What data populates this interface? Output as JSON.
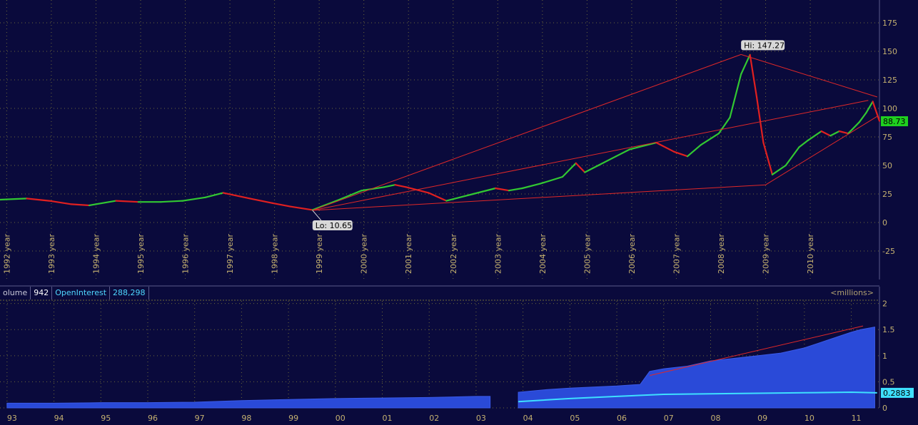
{
  "colors": {
    "background": "#0a0a3c",
    "grid": "#6e6a3a",
    "up": "#32c832",
    "down": "#e02020",
    "trendline": "#e02828",
    "volume": "#2a4ad8",
    "open_interest": "#3ee0ff",
    "axis_text": "#c4b070"
  },
  "chart_data": [
    {
      "type": "line",
      "name": "price",
      "x_tick_labels": [
        "1992 year",
        "1993 year",
        "1994 year",
        "1995 year",
        "1996 year",
        "1997 year",
        "1998 year",
        "1999 year",
        "2000 year",
        "2001 year",
        "2002 year",
        "2003 year",
        "2004 year",
        "2005 year",
        "2006 year",
        "2007 year",
        "2008 year",
        "2009 year",
        "2010 year"
      ],
      "y_ticks": [
        -25,
        0,
        25,
        50,
        75,
        100,
        125,
        150,
        175
      ],
      "ylim": [
        -50,
        195
      ],
      "xlim": [
        1991.9,
        2011.6
      ],
      "grid": true,
      "x": [
        1991.9,
        1992.5,
        1993.0,
        1993.5,
        1993.9,
        1994.5,
        1995.0,
        1995.5,
        1996.0,
        1996.5,
        1996.9,
        1997.5,
        1998.0,
        1998.4,
        1998.9,
        1999.5,
        2000.0,
        2000.5,
        2000.75,
        2001.0,
        2001.5,
        2001.9,
        2002.5,
        2003.0,
        2003.3,
        2003.6,
        2004.0,
        2004.5,
        2004.8,
        2005.0,
        2005.3,
        2005.7,
        2006.0,
        2006.6,
        2007.0,
        2007.3,
        2007.6,
        2008.0,
        2008.25,
        2008.5,
        2008.7,
        2008.85,
        2009.0,
        2009.2,
        2009.5,
        2009.8,
        2010.0,
        2010.3,
        2010.5,
        2010.7,
        2010.9,
        2011.0,
        2011.15,
        2011.3,
        2011.45,
        2011.6
      ],
      "values": [
        20,
        21,
        19,
        16,
        15,
        19,
        18,
        18,
        19,
        22,
        26,
        21,
        17,
        14,
        11,
        20,
        28,
        31,
        33,
        31,
        26,
        19,
        25,
        30,
        28,
        30,
        34,
        40,
        52,
        44,
        50,
        58,
        64,
        70,
        62,
        58,
        68,
        78,
        92,
        130,
        147,
        110,
        70,
        42,
        50,
        66,
        72,
        80,
        76,
        80,
        78,
        82,
        88,
        96,
        106,
        89
      ],
      "annotations": [
        {
          "label": "Hi: 147.27",
          "x": 2008.5,
          "y": 147.27
        },
        {
          "label": "Lo: 10.65",
          "x": 1998.9,
          "y": 10.65
        }
      ],
      "last_value_label": "88.73",
      "last_value": 88.73,
      "trendlines": [
        [
          [
            1998.9,
            10.65
          ],
          [
            2008.5,
            147.27
          ]
        ],
        [
          [
            2008.5,
            147.27
          ],
          [
            2011.55,
            110
          ]
        ],
        [
          [
            1998.9,
            10.65
          ],
          [
            2009.05,
            33
          ]
        ],
        [
          [
            1998.9,
            10.65
          ],
          [
            2011.35,
            107
          ]
        ],
        [
          [
            2009.05,
            33
          ],
          [
            2011.55,
            93
          ]
        ]
      ]
    },
    {
      "type": "area",
      "name": "volume",
      "header": {
        "volume_label": "olume",
        "volume_value": "942",
        "oi_label": "OpenInterest",
        "oi_value": "288,298"
      },
      "units_label": "<millions>",
      "x_tick_labels": [
        "93",
        "94",
        "95",
        "96",
        "97",
        "98",
        "99",
        "00",
        "01",
        "02",
        "03",
        "04",
        "05",
        "06",
        "07",
        "08",
        "09",
        "10",
        "11"
      ],
      "y_ticks": [
        0,
        0.5,
        1,
        1.5,
        2
      ],
      "y_tick_labels": [
        "0",
        "0.5",
        "1",
        "1.5",
        "2"
      ],
      "ylim": [
        0,
        2.05
      ],
      "xlim": [
        1992.85,
        2011.6
      ],
      "volume_segments": [
        {
          "x": [
            1993.0,
            1994.0,
            1995.0,
            1996.0,
            1997.0,
            1998.0,
            1999.0,
            2000.0,
            2001.0,
            2002.0,
            2003.0,
            2003.3
          ],
          "values": [
            0.09,
            0.09,
            0.1,
            0.1,
            0.11,
            0.14,
            0.16,
            0.18,
            0.19,
            0.2,
            0.22,
            0.22
          ]
        },
        {
          "x": [
            2003.9,
            2004.5,
            2005.0,
            2005.5,
            2006.0,
            2006.5,
            2006.7,
            2007.0,
            2007.5,
            2008.0,
            2008.5,
            2009.0,
            2009.5,
            2010.0,
            2010.5,
            2011.0,
            2011.2,
            2011.5
          ],
          "values": [
            0.3,
            0.35,
            0.38,
            0.4,
            0.42,
            0.45,
            0.7,
            0.75,
            0.8,
            0.9,
            0.95,
            1.0,
            1.05,
            1.15,
            1.3,
            1.45,
            1.5,
            1.55
          ]
        }
      ],
      "open_interest": {
        "x": [
          2003.9,
          2005.0,
          2006.0,
          2007.0,
          2008.0,
          2009.0,
          2010.0,
          2011.0,
          2011.55
        ],
        "values": [
          0.12,
          0.18,
          0.22,
          0.26,
          0.27,
          0.28,
          0.29,
          0.3,
          0.2883
        ]
      },
      "last_value_label": "0.2883",
      "last_value": 0.2883,
      "trendline": [
        [
          2006.7,
          0.62
        ],
        [
          2011.25,
          1.57
        ]
      ]
    }
  ]
}
